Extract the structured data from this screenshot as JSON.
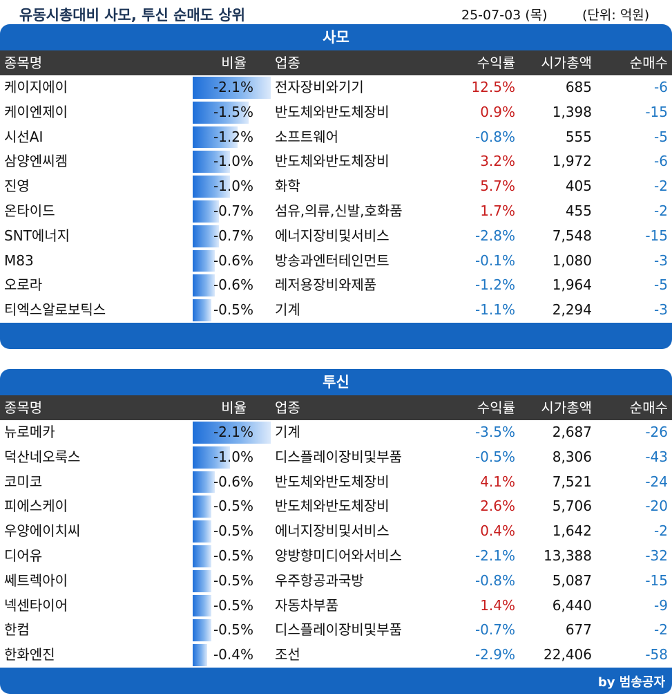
{
  "header": {
    "title": "유동시총대비 사모, 투신 순매도 상위",
    "date": "25-07-03 (목)",
    "unit": "(단위: 억원)"
  },
  "columns": [
    "종목명",
    "비율",
    "업종",
    "수익률",
    "시가총액",
    "순매수"
  ],
  "sections": [
    {
      "title": "사모",
      "rows": [
        {
          "name": "케이지에이",
          "ratio": "-2.1%",
          "ratio_value": -2.1,
          "industry": "전자장비와기기",
          "return": "12.5%",
          "return_value": 12.5,
          "cap": "685",
          "net": "-6"
        },
        {
          "name": "케이엔제이",
          "ratio": "-1.5%",
          "ratio_value": -1.5,
          "industry": "반도체와반도체장비",
          "return": "0.9%",
          "return_value": 0.9,
          "cap": "1,398",
          "net": "-15"
        },
        {
          "name": "시선AI",
          "ratio": "-1.2%",
          "ratio_value": -1.2,
          "industry": "소프트웨어",
          "return": "-0.8%",
          "return_value": -0.8,
          "cap": "555",
          "net": "-5"
        },
        {
          "name": "삼양엔씨켐",
          "ratio": "-1.0%",
          "ratio_value": -1.0,
          "industry": "반도체와반도체장비",
          "return": "3.2%",
          "return_value": 3.2,
          "cap": "1,972",
          "net": "-6"
        },
        {
          "name": "진영",
          "ratio": "-1.0%",
          "ratio_value": -1.0,
          "industry": "화학",
          "return": "5.7%",
          "return_value": 5.7,
          "cap": "405",
          "net": "-2"
        },
        {
          "name": "온타이드",
          "ratio": "-0.7%",
          "ratio_value": -0.7,
          "industry": "섬유,의류,신발,호화품",
          "return": "1.7%",
          "return_value": 1.7,
          "cap": "455",
          "net": "-2"
        },
        {
          "name": "SNT에너지",
          "ratio": "-0.7%",
          "ratio_value": -0.7,
          "industry": "에너지장비및서비스",
          "return": "-2.8%",
          "return_value": -2.8,
          "cap": "7,548",
          "net": "-15"
        },
        {
          "name": "M83",
          "ratio": "-0.6%",
          "ratio_value": -0.6,
          "industry": "방송과엔터테인먼트",
          "return": "-0.1%",
          "return_value": -0.1,
          "cap": "1,080",
          "net": "-3"
        },
        {
          "name": "오로라",
          "ratio": "-0.6%",
          "ratio_value": -0.6,
          "industry": "레저용장비와제품",
          "return": "-1.2%",
          "return_value": -1.2,
          "cap": "1,964",
          "net": "-5"
        },
        {
          "name": "티엑스알로보틱스",
          "ratio": "-0.5%",
          "ratio_value": -0.5,
          "industry": "기계",
          "return": "-1.1%",
          "return_value": -1.1,
          "cap": "2,294",
          "net": "-3"
        }
      ]
    },
    {
      "title": "투신",
      "rows": [
        {
          "name": "뉴로메카",
          "ratio": "-2.1%",
          "ratio_value": -2.1,
          "industry": "기계",
          "return": "-3.5%",
          "return_value": -3.5,
          "cap": "2,687",
          "net": "-26"
        },
        {
          "name": "덕산네오룩스",
          "ratio": "-1.0%",
          "ratio_value": -1.0,
          "industry": "디스플레이장비및부품",
          "return": "-0.5%",
          "return_value": -0.5,
          "cap": "8,306",
          "net": "-43"
        },
        {
          "name": "코미코",
          "ratio": "-0.6%",
          "ratio_value": -0.6,
          "industry": "반도체와반도체장비",
          "return": "4.1%",
          "return_value": 4.1,
          "cap": "7,521",
          "net": "-24"
        },
        {
          "name": "피에스케이",
          "ratio": "-0.5%",
          "ratio_value": -0.5,
          "industry": "반도체와반도체장비",
          "return": "2.6%",
          "return_value": 2.6,
          "cap": "5,706",
          "net": "-20"
        },
        {
          "name": "우양에이치씨",
          "ratio": "-0.5%",
          "ratio_value": -0.5,
          "industry": "에너지장비및서비스",
          "return": "0.4%",
          "return_value": 0.4,
          "cap": "1,642",
          "net": "-2"
        },
        {
          "name": "디어유",
          "ratio": "-0.5%",
          "ratio_value": -0.5,
          "industry": "양방향미디어와서비스",
          "return": "-2.1%",
          "return_value": -2.1,
          "cap": "13,388",
          "net": "-32"
        },
        {
          "name": "쎄트렉아이",
          "ratio": "-0.5%",
          "ratio_value": -0.5,
          "industry": "우주항공과국방",
          "return": "-0.8%",
          "return_value": -0.8,
          "cap": "5,087",
          "net": "-15"
        },
        {
          "name": "넥센타이어",
          "ratio": "-0.5%",
          "ratio_value": -0.5,
          "industry": "자동차부품",
          "return": "1.4%",
          "return_value": 1.4,
          "cap": "6,440",
          "net": "-9"
        },
        {
          "name": "한컴",
          "ratio": "-0.5%",
          "ratio_value": -0.5,
          "industry": "디스플레이장비및부품",
          "return": "-0.7%",
          "return_value": -0.7,
          "cap": "677",
          "net": "-2"
        },
        {
          "name": "한화엔진",
          "ratio": "-0.4%",
          "ratio_value": -0.4,
          "industry": "조선",
          "return": "-2.9%",
          "return_value": -2.9,
          "cap": "22,406",
          "net": "-58"
        }
      ]
    }
  ],
  "footer": {
    "byline": "by 범송공자"
  },
  "colors": {
    "banner": "#1565c0",
    "header_bg": "#3a3a3a",
    "positive": "#c81e1e",
    "negative": "#1f77c4",
    "title": "#1d3557"
  }
}
